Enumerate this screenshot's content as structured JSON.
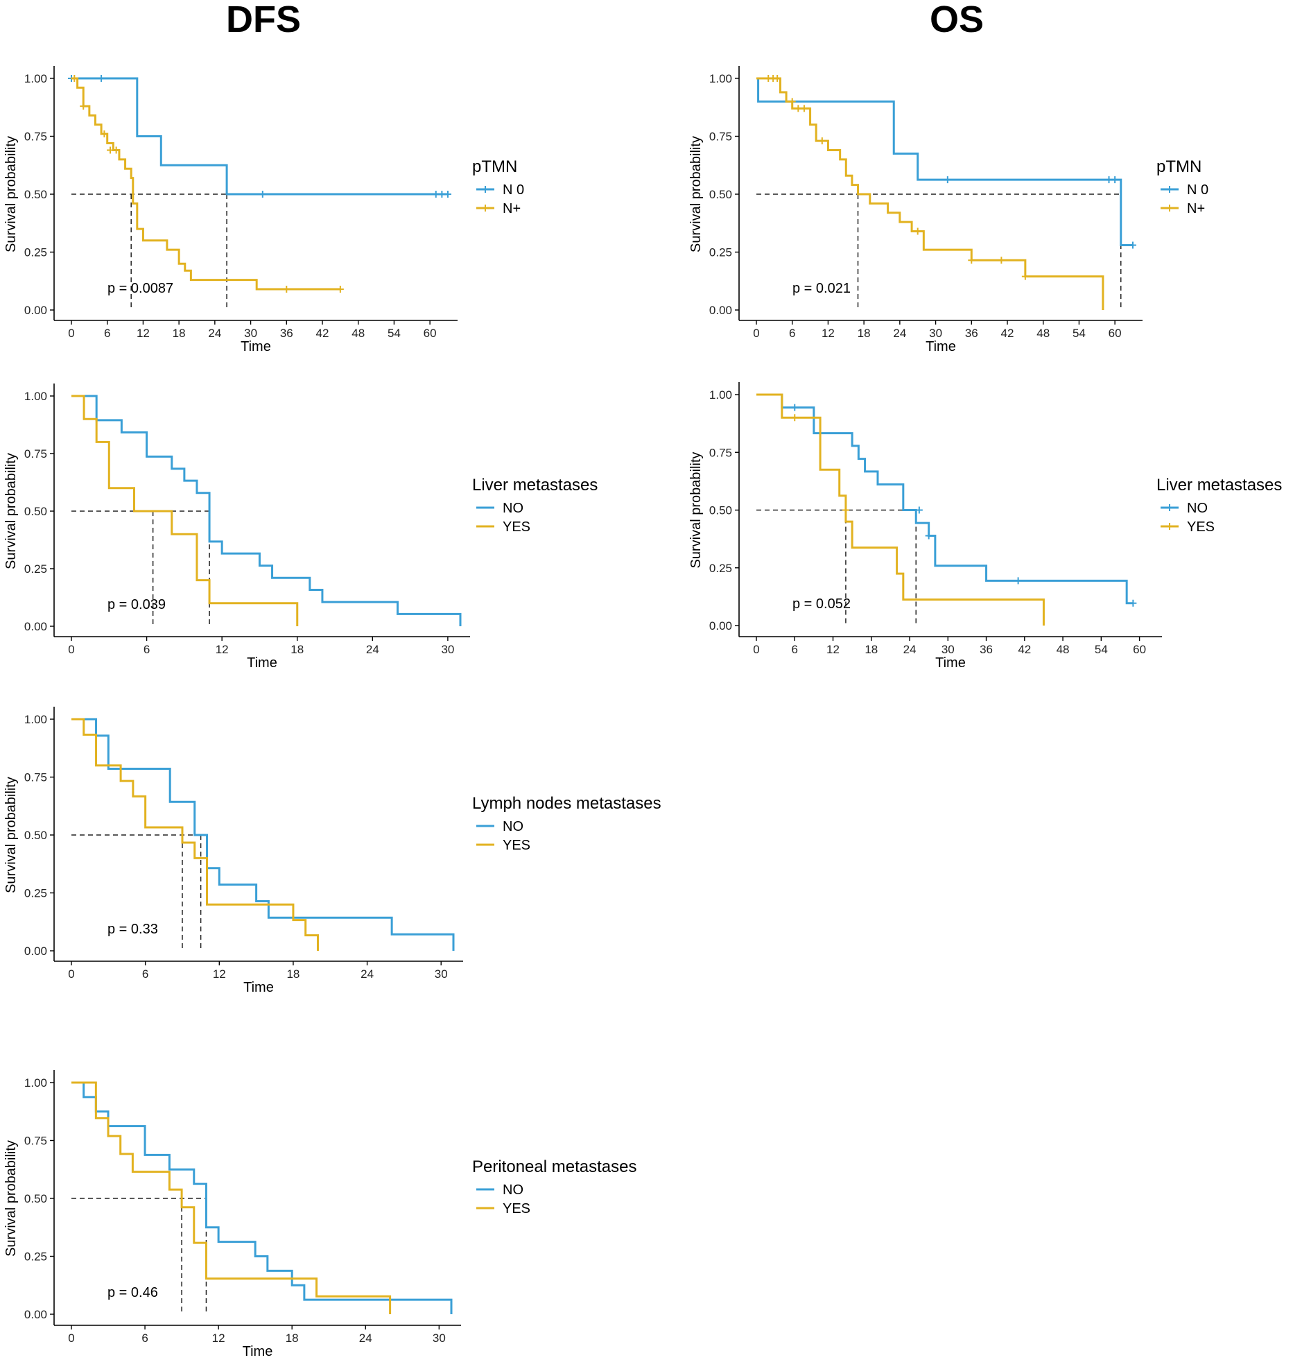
{
  "titles": {
    "dfs": "DFS",
    "os": "OS"
  },
  "colors": {
    "blue": "#3a9fd6",
    "gold": "#e2b220",
    "axis": "#000000",
    "ref": "#222222"
  },
  "chart_data": [
    {
      "id": "dfs_ptmn",
      "type": "line",
      "column": "DFS",
      "xlabel": "Time",
      "ylabel": "Survival probability",
      "xlim": [
        0,
        63
      ],
      "xticks": [
        0,
        6,
        12,
        18,
        24,
        30,
        36,
        42,
        48,
        54,
        60
      ],
      "ylim": [
        0,
        1
      ],
      "yticks": [
        "0.00",
        "0.25",
        "0.50",
        "0.75",
        "1.00"
      ],
      "legend_title": "pTMN",
      "pvalue": "p = 0.0087",
      "median_times": [
        10,
        26
      ],
      "series": [
        {
          "name": "N 0",
          "color": "#3a9fd6",
          "steps": [
            [
              0,
              1
            ],
            [
              11,
              0.75
            ],
            [
              15,
              0.625
            ],
            [
              26,
              0.5
            ],
            [
              63,
              0.5
            ]
          ],
          "censor": [
            [
              0,
              1
            ],
            [
              5,
              1
            ],
            [
              32,
              0.5
            ],
            [
              61,
              0.5
            ],
            [
              62,
              0.5
            ],
            [
              63,
              0.5
            ]
          ]
        },
        {
          "name": "N+",
          "color": "#e2b220",
          "steps": [
            [
              0,
              1
            ],
            [
              1,
              0.96
            ],
            [
              2,
              0.88
            ],
            [
              3,
              0.84
            ],
            [
              4,
              0.8
            ],
            [
              5,
              0.76
            ],
            [
              6,
              0.72
            ],
            [
              7,
              0.69
            ],
            [
              8,
              0.65
            ],
            [
              9,
              0.61
            ],
            [
              10,
              0.57
            ],
            [
              10.3,
              0.46
            ],
            [
              11,
              0.35
            ],
            [
              12,
              0.3
            ],
            [
              16,
              0.26
            ],
            [
              18,
              0.2
            ],
            [
              19,
              0.17
            ],
            [
              20,
              0.13
            ],
            [
              31,
              0.09
            ],
            [
              45,
              0.09
            ]
          ],
          "censor": [
            [
              0.5,
              1
            ],
            [
              2,
              0.88
            ],
            [
              5.5,
              0.76
            ],
            [
              6.5,
              0.69
            ],
            [
              7.5,
              0.69
            ],
            [
              36,
              0.09
            ],
            [
              45,
              0.09
            ]
          ]
        }
      ]
    },
    {
      "id": "dfs_liver",
      "type": "line",
      "column": "DFS",
      "xlabel": "Time",
      "ylabel": "Survival probability",
      "xlim": [
        0,
        31
      ],
      "xticks": [
        0,
        6,
        12,
        18,
        24,
        30
      ],
      "ylim": [
        0,
        1
      ],
      "yticks": [
        "0.00",
        "0.25",
        "0.50",
        "0.75",
        "1.00"
      ],
      "legend_title": "Liver metastases",
      "pvalue": "p = 0.039",
      "median_times": [
        6.5,
        11
      ],
      "series": [
        {
          "name": "NO",
          "color": "#3a9fd6",
          "steps": [
            [
              0,
              1
            ],
            [
              2,
              0.895
            ],
            [
              4,
              0.842
            ],
            [
              6,
              0.737
            ],
            [
              8,
              0.684
            ],
            [
              9,
              0.632
            ],
            [
              10,
              0.579
            ],
            [
              11,
              0.368
            ],
            [
              12,
              0.316
            ],
            [
              15,
              0.263
            ],
            [
              16,
              0.21
            ],
            [
              19,
              0.158
            ],
            [
              20,
              0.105
            ],
            [
              26,
              0.053
            ],
            [
              31,
              0
            ]
          ],
          "censor": []
        },
        {
          "name": "YES",
          "color": "#e2b220",
          "steps": [
            [
              0,
              1
            ],
            [
              1,
              0.9
            ],
            [
              2,
              0.8
            ],
            [
              3,
              0.6
            ],
            [
              5,
              0.5
            ],
            [
              8,
              0.4
            ],
            [
              10,
              0.2
            ],
            [
              11,
              0.1
            ],
            [
              18,
              0
            ]
          ],
          "censor": []
        }
      ]
    },
    {
      "id": "dfs_lymph",
      "type": "line",
      "column": "DFS",
      "xlabel": "Time",
      "ylabel": "Survival probability",
      "xlim": [
        0,
        31
      ],
      "xticks": [
        0,
        6,
        12,
        18,
        24,
        30
      ],
      "ylim": [
        0,
        1
      ],
      "yticks": [
        "0.00",
        "0.25",
        "0.50",
        "0.75",
        "1.00"
      ],
      "legend_title": "Lymph nodes metastases",
      "pvalue": "p = 0.33",
      "median_times": [
        9,
        10.5
      ],
      "series": [
        {
          "name": "NO",
          "color": "#3a9fd6",
          "steps": [
            [
              0,
              1
            ],
            [
              2,
              0.929
            ],
            [
              3,
              0.786
            ],
            [
              8,
              0.643
            ],
            [
              10,
              0.5
            ],
            [
              11,
              0.357
            ],
            [
              12,
              0.286
            ],
            [
              15,
              0.214
            ],
            [
              16,
              0.143
            ],
            [
              26,
              0.071
            ],
            [
              31,
              0
            ]
          ],
          "censor": []
        },
        {
          "name": "YES",
          "color": "#e2b220",
          "steps": [
            [
              0,
              1
            ],
            [
              1,
              0.933
            ],
            [
              2,
              0.8
            ],
            [
              4,
              0.733
            ],
            [
              5,
              0.667
            ],
            [
              6,
              0.533
            ],
            [
              9,
              0.467
            ],
            [
              10,
              0.4
            ],
            [
              11,
              0.2
            ],
            [
              18,
              0.133
            ],
            [
              19,
              0.067
            ],
            [
              20,
              0
            ]
          ],
          "censor": []
        }
      ]
    },
    {
      "id": "dfs_perit",
      "type": "line",
      "column": "DFS",
      "xlabel": "Time",
      "ylabel": "Survival probability",
      "xlim": [
        0,
        31
      ],
      "xticks": [
        0,
        6,
        12,
        18,
        24,
        30
      ],
      "ylim": [
        0,
        1
      ],
      "yticks": [
        "0.00",
        "0.25",
        "0.50",
        "0.75",
        "1.00"
      ],
      "legend_title": "Peritoneal metastases",
      "pvalue": "p = 0.46",
      "median_times": [
        9,
        11
      ],
      "series": [
        {
          "name": "NO",
          "color": "#3a9fd6",
          "steps": [
            [
              0,
              1
            ],
            [
              1,
              0.9375
            ],
            [
              2,
              0.875
            ],
            [
              3,
              0.8125
            ],
            [
              6,
              0.6875
            ],
            [
              8,
              0.625
            ],
            [
              10,
              0.5625
            ],
            [
              11,
              0.375
            ],
            [
              12,
              0.3125
            ],
            [
              15,
              0.25
            ],
            [
              16,
              0.1875
            ],
            [
              18,
              0.125
            ],
            [
              19,
              0.0625
            ],
            [
              31,
              0
            ]
          ],
          "censor": []
        },
        {
          "name": "YES",
          "color": "#e2b220",
          "steps": [
            [
              0,
              1
            ],
            [
              2,
              0.846
            ],
            [
              3,
              0.769
            ],
            [
              4,
              0.692
            ],
            [
              5,
              0.615
            ],
            [
              8,
              0.538
            ],
            [
              9,
              0.462
            ],
            [
              10,
              0.308
            ],
            [
              11,
              0.154
            ],
            [
              20,
              0.077
            ],
            [
              26,
              0
            ]
          ],
          "censor": []
        }
      ]
    },
    {
      "id": "os_ptmn",
      "type": "line",
      "column": "OS",
      "xlabel": "Time",
      "ylabel": "Survival probability",
      "xlim": [
        0,
        63
      ],
      "xticks": [
        0,
        6,
        12,
        18,
        24,
        30,
        36,
        42,
        48,
        54,
        60
      ],
      "ylim": [
        0,
        1
      ],
      "yticks": [
        "0.00",
        "0.25",
        "0.50",
        "0.75",
        "1.00"
      ],
      "legend_title": "pTMN",
      "pvalue": "p = 0.021",
      "median_times": [
        17,
        61
      ],
      "series": [
        {
          "name": "N 0",
          "color": "#3a9fd6",
          "steps": [
            [
              0,
              1
            ],
            [
              0.3,
              0.9
            ],
            [
              23,
              0.675
            ],
            [
              27,
              0.5625
            ],
            [
              61,
              0.28
            ],
            [
              63,
              0.28
            ]
          ],
          "censor": [
            [
              32,
              0.5625
            ],
            [
              59,
              0.5625
            ],
            [
              60,
              0.5625
            ],
            [
              63,
              0.28
            ]
          ]
        },
        {
          "name": "N+",
          "color": "#e2b220",
          "steps": [
            [
              0,
              1
            ],
            [
              4,
              0.94
            ],
            [
              5,
              0.9
            ],
            [
              6,
              0.87
            ],
            [
              9,
              0.8
            ],
            [
              10,
              0.73
            ],
            [
              12,
              0.69
            ],
            [
              14,
              0.65
            ],
            [
              15,
              0.58
            ],
            [
              16,
              0.54
            ],
            [
              17,
              0.5
            ],
            [
              19,
              0.46
            ],
            [
              22,
              0.42
            ],
            [
              24,
              0.38
            ],
            [
              26,
              0.34
            ],
            [
              28,
              0.26
            ],
            [
              36,
              0.215
            ],
            [
              45,
              0.145
            ],
            [
              58,
              0
            ]
          ],
          "censor": [
            [
              2,
              1
            ],
            [
              2.8,
              1
            ],
            [
              3.5,
              1
            ],
            [
              6,
              0.9
            ],
            [
              7,
              0.87
            ],
            [
              8,
              0.87
            ],
            [
              11,
              0.73
            ],
            [
              27,
              0.34
            ],
            [
              36,
              0.215
            ],
            [
              41,
              0.215
            ],
            [
              45,
              0.145
            ]
          ]
        }
      ]
    },
    {
      "id": "os_liver",
      "type": "line",
      "column": "OS",
      "xlabel": "Time",
      "ylabel": "Survival probability",
      "xlim": [
        0,
        62
      ],
      "xticks": [
        0,
        6,
        12,
        18,
        24,
        30,
        36,
        42,
        48,
        54,
        60
      ],
      "ylim": [
        0,
        1
      ],
      "yticks": [
        "0.00",
        "0.25",
        "0.50",
        "0.75",
        "1.00"
      ],
      "legend_title": "Liver metastases",
      "pvalue": "p = 0.052",
      "median_times": [
        14,
        25
      ],
      "series": [
        {
          "name": "NO",
          "color": "#3a9fd6",
          "steps": [
            [
              0,
              1
            ],
            [
              4,
              0.944
            ],
            [
              9,
              0.833
            ],
            [
              15,
              0.778
            ],
            [
              16,
              0.722
            ],
            [
              17,
              0.667
            ],
            [
              19,
              0.611
            ],
            [
              23,
              0.5
            ],
            [
              25,
              0.444
            ],
            [
              27,
              0.389
            ],
            [
              28,
              0.259
            ],
            [
              36,
              0.194
            ],
            [
              58,
              0.097
            ],
            [
              59,
              0.097
            ]
          ],
          "censor": [
            [
              6,
              0.944
            ],
            [
              25.5,
              0.5
            ],
            [
              27,
              0.389
            ],
            [
              41,
              0.194
            ],
            [
              59,
              0.097
            ]
          ]
        },
        {
          "name": "YES",
          "color": "#e2b220",
          "steps": [
            [
              0,
              1
            ],
            [
              4,
              0.9
            ],
            [
              10,
              0.675
            ],
            [
              13,
              0.5625
            ],
            [
              14,
              0.45
            ],
            [
              15,
              0.3375
            ],
            [
              22,
              0.225
            ],
            [
              23,
              0.1125
            ],
            [
              45,
              0
            ]
          ],
          "censor": [
            [
              6,
              0.9
            ],
            [
              14,
              0.5
            ]
          ]
        }
      ]
    }
  ]
}
